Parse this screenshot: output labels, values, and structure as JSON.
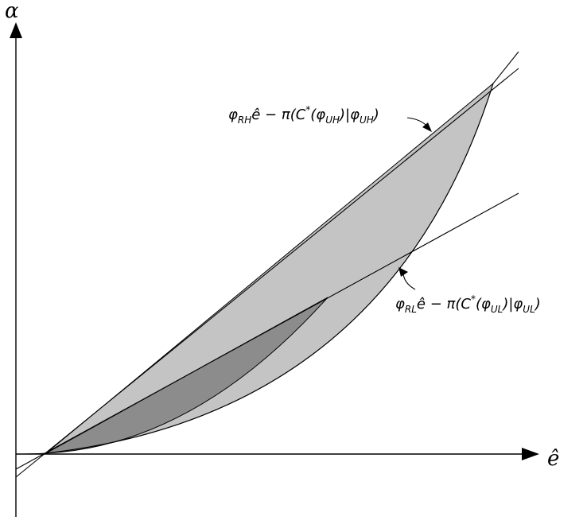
{
  "axes": {
    "y_label": "α",
    "x_label": "ê"
  },
  "annotations": {
    "upper": {
      "phi": "φ",
      "phi_sub": "RH",
      "ehat": "ê",
      "minus_pi": " − π(C",
      "star": "*",
      "open": "(φ",
      "open_sub": "UH",
      "bar_phi": ")|φ",
      "bar_sub": "UH",
      "close": ")"
    },
    "lower": {
      "phi": "φ",
      "phi_sub": "RL",
      "ehat": "ê",
      "minus_pi": " − π(C",
      "star": "*",
      "open": "(φ",
      "open_sub": "UL",
      "bar_phi": ")|φ",
      "bar_sub": "UL",
      "close": ")"
    }
  },
  "colors": {
    "light_region": "#c4c4c4",
    "dark_region": "#8c8c8c",
    "line": "#000000"
  }
}
